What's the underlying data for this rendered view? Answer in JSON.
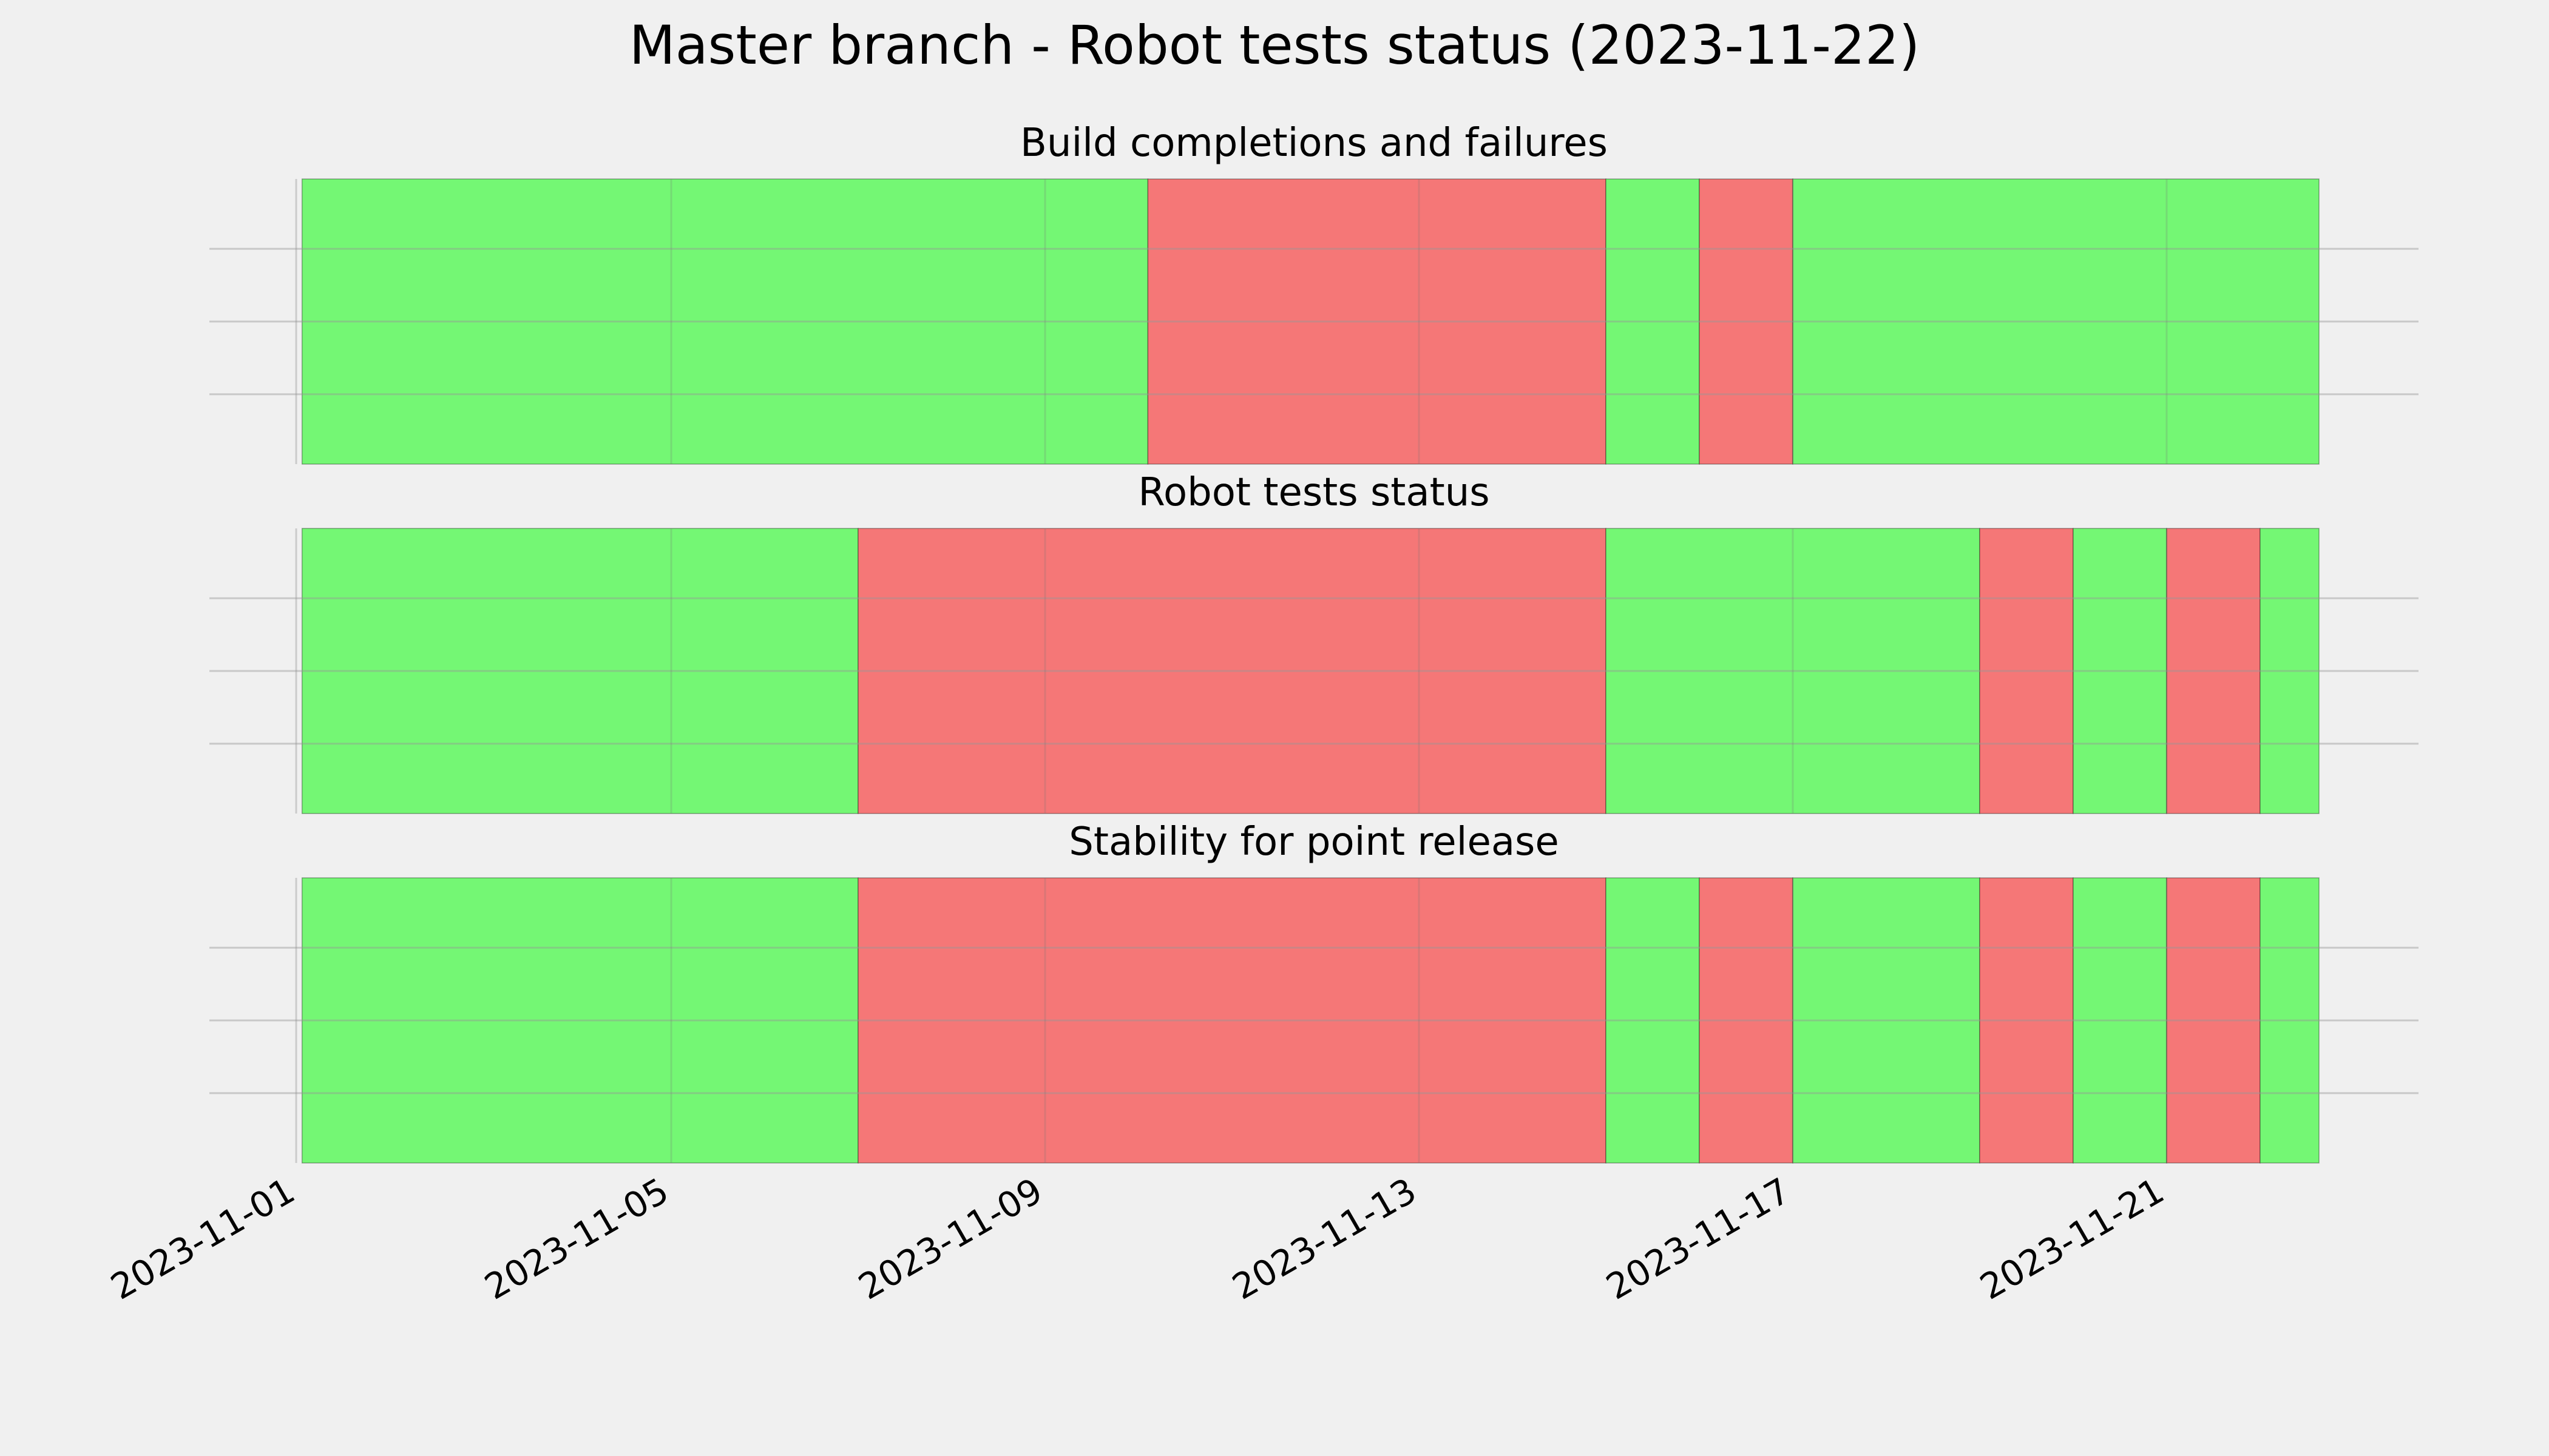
{
  "chart_data": {
    "type": "timeline",
    "title": "Master branch - Robot tests status (2023-11-22)",
    "x_axis": {
      "range": [
        "2023-11-01",
        "2023-11-22"
      ],
      "ticks": [
        "2023-11-01",
        "2023-11-05",
        "2023-11-09",
        "2023-11-13",
        "2023-11-17",
        "2023-11-21"
      ],
      "grid": true
    },
    "colors": {
      "pass": "#74f774",
      "fail": "#f57777",
      "background": "#f0f0f0"
    },
    "panels": [
      {
        "title": "Build completions and failures",
        "segments": [
          {
            "start": 0.05,
            "end": 9.1,
            "status": "pass"
          },
          {
            "start": 9.1,
            "end": 14.0,
            "status": "fail"
          },
          {
            "start": 14.0,
            "end": 15.0,
            "status": "pass"
          },
          {
            "start": 15.0,
            "end": 16.0,
            "status": "fail"
          },
          {
            "start": 16.0,
            "end": 21.63,
            "status": "pass"
          }
        ]
      },
      {
        "title": "Robot tests status",
        "segments": [
          {
            "start": 0.05,
            "end": 6.0,
            "status": "pass"
          },
          {
            "start": 6.0,
            "end": 14.0,
            "status": "fail"
          },
          {
            "start": 14.0,
            "end": 18.0,
            "status": "pass"
          },
          {
            "start": 18.0,
            "end": 19.0,
            "status": "fail"
          },
          {
            "start": 19.0,
            "end": 20.0,
            "status": "pass"
          },
          {
            "start": 20.0,
            "end": 21.0,
            "status": "fail"
          },
          {
            "start": 21.0,
            "end": 21.63,
            "status": "pass"
          }
        ]
      },
      {
        "title": "Stability for point release",
        "segments": [
          {
            "start": 0.05,
            "end": 6.0,
            "status": "pass"
          },
          {
            "start": 6.0,
            "end": 14.0,
            "status": "fail"
          },
          {
            "start": 14.0,
            "end": 15.0,
            "status": "pass"
          },
          {
            "start": 15.0,
            "end": 16.0,
            "status": "fail"
          },
          {
            "start": 16.0,
            "end": 18.0,
            "status": "pass"
          },
          {
            "start": 18.0,
            "end": 19.0,
            "status": "fail"
          },
          {
            "start": 19.0,
            "end": 20.0,
            "status": "pass"
          },
          {
            "start": 20.0,
            "end": 21.0,
            "status": "fail"
          },
          {
            "start": 21.0,
            "end": 21.63,
            "status": "pass"
          }
        ]
      }
    ]
  }
}
